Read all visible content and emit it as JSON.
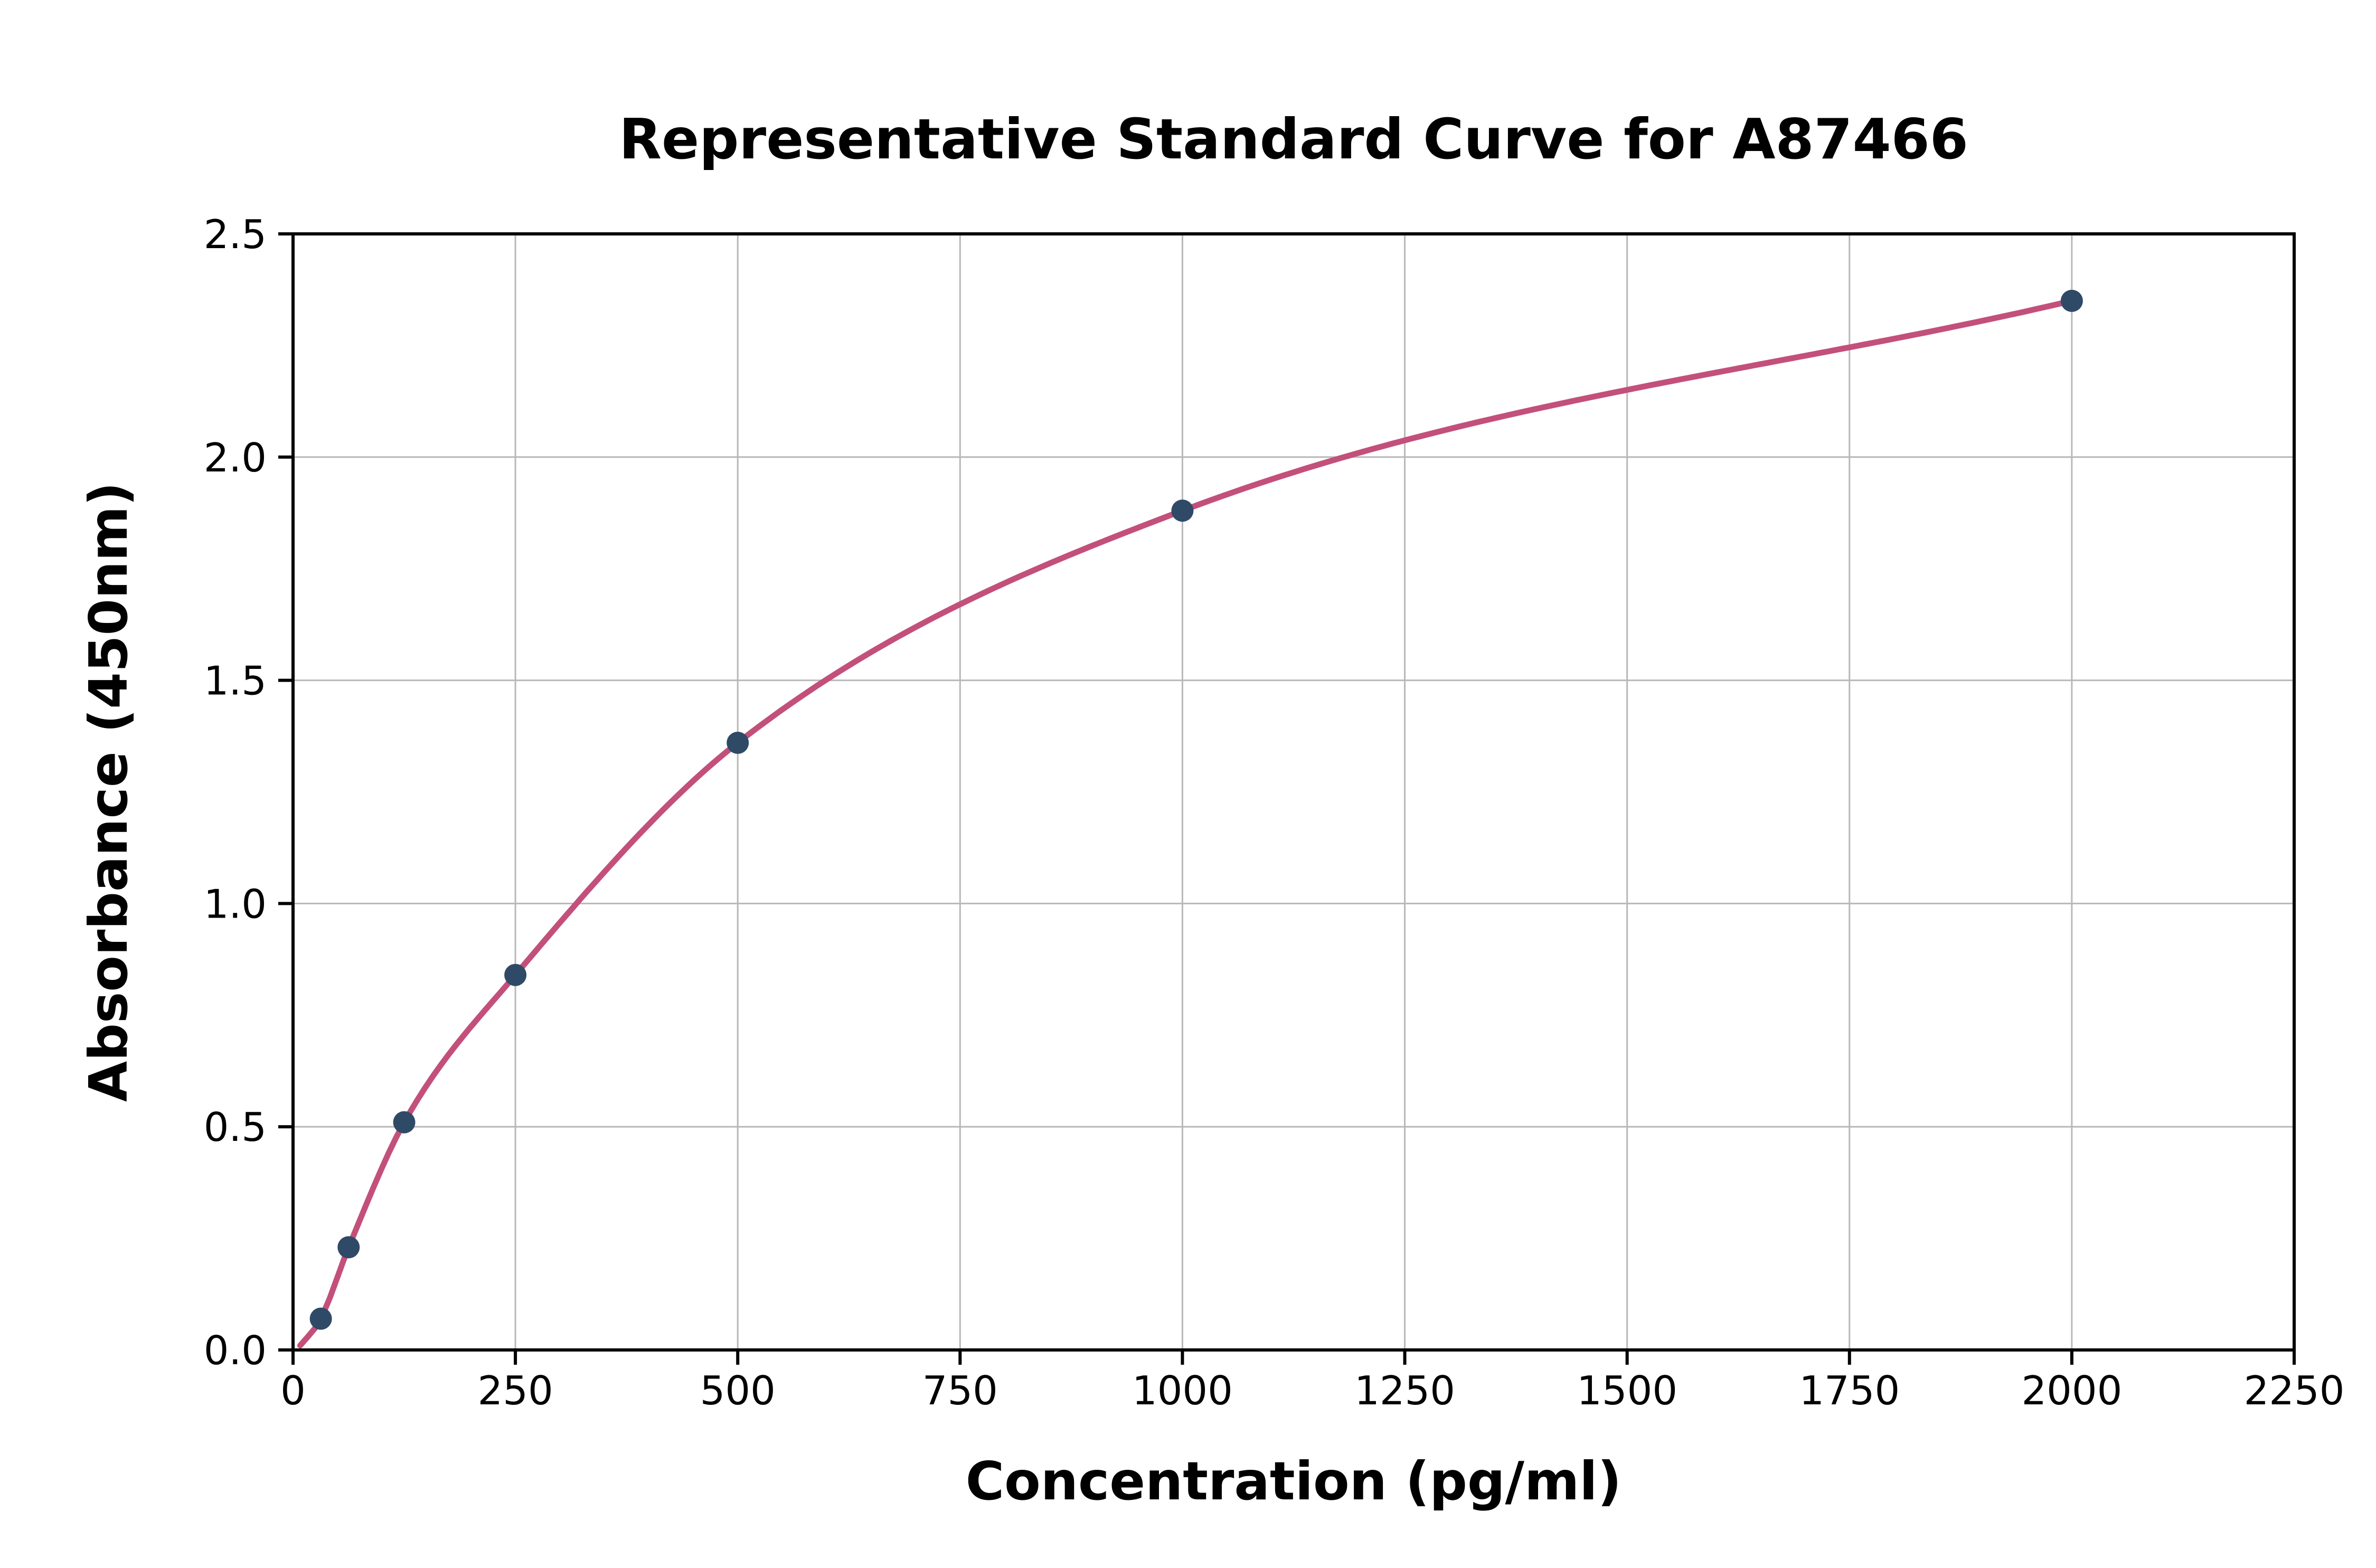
{
  "chart_data": {
    "type": "scatter",
    "title": "Representative Standard Curve for A87466",
    "xlabel": "Concentration (pg/ml)",
    "ylabel": "Absorbance (450nm)",
    "xlim": [
      0,
      2250
    ],
    "ylim": [
      0,
      2.5
    ],
    "x_ticks": [
      0,
      250,
      500,
      750,
      1000,
      1250,
      1500,
      1750,
      2000,
      2250
    ],
    "x_tick_labels": [
      "0",
      "250",
      "500",
      "750",
      "1000",
      "1250",
      "1500",
      "1750",
      "2000",
      "2250"
    ],
    "y_ticks": [
      0,
      0.5,
      1.0,
      1.5,
      2.0,
      2.5
    ],
    "y_tick_labels": [
      "0.0",
      "0.5",
      "1.0",
      "1.5",
      "2.0",
      "2.5"
    ],
    "grid": true,
    "legend_position": "none",
    "grid_color": "#b8b8b8",
    "axis_color": "#000000",
    "background_color": "#ffffff",
    "series": [
      {
        "name": "standard-points",
        "type": "scatter",
        "color": "#2e4a66",
        "x": [
          31.25,
          62.5,
          125,
          250,
          500,
          1000,
          2000
        ],
        "y": [
          0.07,
          0.23,
          0.51,
          0.84,
          1.36,
          1.88,
          2.35
        ]
      },
      {
        "name": "fit-curve",
        "type": "spline",
        "color": "#c3507b",
        "x": [
          8,
          31.25,
          62.5,
          125,
          250,
          500,
          1000,
          2000
        ],
        "y": [
          0.01,
          0.07,
          0.23,
          0.51,
          0.84,
          1.36,
          1.88,
          2.35
        ]
      }
    ]
  }
}
